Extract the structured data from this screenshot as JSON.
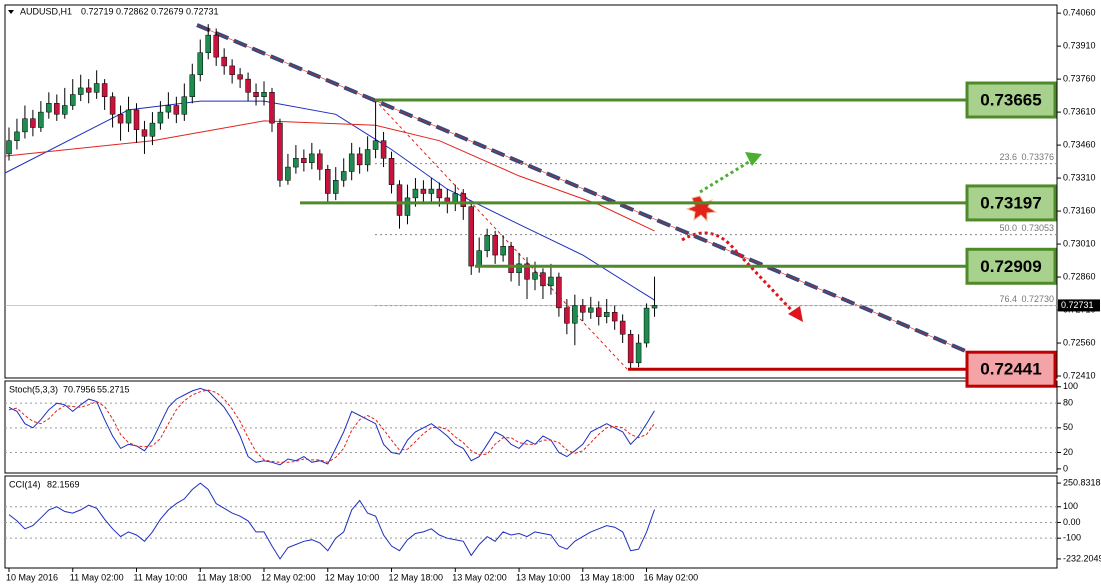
{
  "chart_data": [
    {
      "type": "candlestick",
      "symbol": "AUDUSD,H1",
      "xlim": [
        -0.5,
        131.5
      ],
      "xticks": [
        {
          "value": 0,
          "label": "10 May 2016"
        },
        {
          "value": 8,
          "label": "11 May 02:00"
        },
        {
          "value": 16,
          "label": "11 May 10:00"
        },
        {
          "value": 24,
          "label": "11 May 18:00"
        },
        {
          "value": 32,
          "label": "12 May 02:00"
        },
        {
          "value": 40,
          "label": "12 May 10:00"
        },
        {
          "value": 48,
          "label": "12 May 18:00"
        },
        {
          "value": 56,
          "label": "13 May 02:00"
        },
        {
          "value": 64,
          "label": "13 May 10:00"
        },
        {
          "value": 72,
          "label": "13 May 18:00"
        },
        {
          "value": 80,
          "label": "16 May 02:00"
        }
      ],
      "ylim": [
        0.72401,
        0.74097
      ],
      "yticks": [
        {
          "value": 0.7406,
          "label": "0.74060"
        },
        {
          "value": 0.7391,
          "label": "0.73910"
        },
        {
          "value": 0.7376,
          "label": "0.73760"
        },
        {
          "value": 0.7361,
          "label": "0.73610"
        },
        {
          "value": 0.7346,
          "label": "0.73460"
        },
        {
          "value": 0.7331,
          "label": "0.73310"
        },
        {
          "value": 0.7316,
          "label": "0.73160"
        },
        {
          "value": 0.7301,
          "label": "0.73010"
        },
        {
          "value": 0.7286,
          "label": "0.72860"
        },
        {
          "value": 0.7271,
          "label": "0.72710"
        },
        {
          "value": 0.7256,
          "label": "0.72560"
        },
        {
          "value": 0.7241,
          "label": "0.72410"
        }
      ],
      "up_color": "#1e8c4e",
      "down_color": "#c8143c",
      "open": [
        0.7342,
        0.7348,
        0.7352,
        0.7358,
        0.7354,
        0.7361,
        0.7365,
        0.736,
        0.7364,
        0.7369,
        0.7372,
        0.737,
        0.7374,
        0.7368,
        0.736,
        0.7356,
        0.7362,
        0.7353,
        0.735,
        0.7356,
        0.7361,
        0.7364,
        0.736,
        0.7368,
        0.7378,
        0.7388,
        0.7396,
        0.7386,
        0.7382,
        0.7378,
        0.7376,
        0.737,
        0.7368,
        0.737,
        0.7356,
        0.733,
        0.7336,
        0.734,
        0.7338,
        0.7342,
        0.7335,
        0.7324,
        0.733,
        0.7334,
        0.7342,
        0.7337,
        0.7344,
        0.7348,
        0.734,
        0.7328,
        0.7314,
        0.7322,
        0.7326,
        0.7324,
        0.7326,
        0.7322,
        0.732,
        0.7324,
        0.7318,
        0.7291,
        0.7298,
        0.7305,
        0.7296,
        0.73,
        0.7288,
        0.7292,
        0.7285,
        0.7288,
        0.7282,
        0.7286,
        0.7272,
        0.7265,
        0.7273,
        0.727,
        0.7272,
        0.7268,
        0.727,
        0.7266,
        0.726,
        0.7247,
        0.7256,
        0.72719
      ],
      "high": [
        0.7354,
        0.7358,
        0.7364,
        0.7362,
        0.7366,
        0.737,
        0.7369,
        0.7372,
        0.7376,
        0.7378,
        0.7376,
        0.738,
        0.7376,
        0.737,
        0.7364,
        0.7368,
        0.7365,
        0.7357,
        0.7361,
        0.7366,
        0.737,
        0.7368,
        0.7374,
        0.7383,
        0.7394,
        0.7401,
        0.7399,
        0.739,
        0.7385,
        0.7381,
        0.7379,
        0.7374,
        0.7375,
        0.7372,
        0.7358,
        0.7342,
        0.7346,
        0.7344,
        0.7347,
        0.7344,
        0.7337,
        0.7336,
        0.734,
        0.7347,
        0.7345,
        0.735,
        0.73665,
        0.7352,
        0.7343,
        0.733,
        0.7328,
        0.7331,
        0.733,
        0.7331,
        0.7329,
        0.7326,
        0.7328,
        0.7326,
        0.732,
        0.7304,
        0.7308,
        0.7307,
        0.7305,
        0.7302,
        0.7297,
        0.7295,
        0.7293,
        0.729,
        0.7292,
        0.7288,
        0.7276,
        0.7278,
        0.7276,
        0.7277,
        0.7275,
        0.7276,
        0.7273,
        0.7269,
        0.7262,
        0.726,
        0.7274,
        0.72862
      ],
      "low": [
        0.7339,
        0.7344,
        0.7349,
        0.735,
        0.7352,
        0.7358,
        0.7357,
        0.7358,
        0.7362,
        0.7366,
        0.7365,
        0.7367,
        0.7362,
        0.7354,
        0.7348,
        0.7352,
        0.7347,
        0.7342,
        0.7346,
        0.7353,
        0.7358,
        0.7356,
        0.7357,
        0.7365,
        0.7375,
        0.7385,
        0.7382,
        0.7378,
        0.7374,
        0.7372,
        0.7366,
        0.7364,
        0.7364,
        0.7352,
        0.7327,
        0.7328,
        0.7333,
        0.7334,
        0.7335,
        0.733,
        0.732,
        0.7321,
        0.7327,
        0.733,
        0.7333,
        0.7334,
        0.734,
        0.7336,
        0.7324,
        0.7308,
        0.731,
        0.7318,
        0.732,
        0.732,
        0.7318,
        0.7315,
        0.7316,
        0.7312,
        0.7287,
        0.7288,
        0.7295,
        0.7292,
        0.7293,
        0.7284,
        0.7282,
        0.7276,
        0.728,
        0.7276,
        0.7278,
        0.7268,
        0.726,
        0.7255,
        0.7266,
        0.7267,
        0.7264,
        0.7265,
        0.7262,
        0.7256,
        0.72441,
        0.7245,
        0.7254,
        0.72679
      ],
      "close": [
        0.7348,
        0.7352,
        0.7358,
        0.7354,
        0.7361,
        0.7365,
        0.736,
        0.7364,
        0.7369,
        0.7372,
        0.737,
        0.7374,
        0.7368,
        0.736,
        0.7356,
        0.7362,
        0.7353,
        0.735,
        0.7356,
        0.7361,
        0.7364,
        0.736,
        0.7368,
        0.7378,
        0.7388,
        0.7396,
        0.7386,
        0.7382,
        0.7378,
        0.7376,
        0.737,
        0.7368,
        0.737,
        0.7356,
        0.733,
        0.7336,
        0.734,
        0.7338,
        0.7342,
        0.7335,
        0.7324,
        0.733,
        0.7334,
        0.7342,
        0.7337,
        0.7344,
        0.7348,
        0.734,
        0.7328,
        0.7314,
        0.7322,
        0.7326,
        0.7324,
        0.7326,
        0.7322,
        0.732,
        0.7324,
        0.7318,
        0.7291,
        0.7298,
        0.7305,
        0.7296,
        0.73,
        0.7288,
        0.7292,
        0.7285,
        0.7288,
        0.7282,
        0.7286,
        0.7272,
        0.7265,
        0.7273,
        0.727,
        0.7272,
        0.7268,
        0.727,
        0.7266,
        0.726,
        0.7247,
        0.7256,
        0.72719,
        0.72731
      ],
      "overlays": [
        {
          "color": "#1f2fbf",
          "x": [
            -0.5,
            15,
            24,
            32,
            41,
            48,
            55,
            64,
            72,
            79,
            81
          ],
          "values": [
            0.73333,
            0.7362,
            0.7366,
            0.7366,
            0.736,
            0.7344,
            0.7326,
            0.731,
            0.7296,
            0.728,
            0.72755
          ]
        },
        {
          "color": "#e0241c",
          "x": [
            -0.5,
            18,
            32,
            46,
            54,
            64,
            74,
            81
          ],
          "values": [
            0.7341,
            0.7348,
            0.7357,
            0.7355,
            0.7348,
            0.7332,
            0.7319,
            0.7307
          ]
        }
      ],
      "levels": [
        {
          "value": 0.73665,
          "label": "0.73665",
          "color": "#4f8a2a",
          "fill": "#a9d18e"
        },
        {
          "value": 0.73197,
          "label": "0.73197",
          "color": "#4f8a2a",
          "fill": "#a9d18e"
        },
        {
          "value": 0.72909,
          "label": "0.72909",
          "color": "#4f8a2a",
          "fill": "#a9d18e"
        },
        {
          "value": 0.72441,
          "label": "0.72441",
          "color": "#c00000",
          "fill": "#f4a3a6"
        }
      ],
      "fibs": [
        {
          "level": "23.6",
          "value": 0.73376,
          "label": "0.73376"
        },
        {
          "level": "50.0",
          "value": 0.73053,
          "label": "0.73053"
        },
        {
          "level": "76.4",
          "value": 0.7273,
          "label": "0.72730"
        }
      ]
    },
    {
      "type": "line",
      "title": "Stoch(5,3,3)",
      "ylim": [
        -5,
        107
      ],
      "yticks": [
        100,
        80,
        50,
        20,
        0
      ],
      "series": [
        {
          "color": "#1f2fbf",
          "values": [
            75,
            70,
            55,
            50,
            60,
            72,
            80,
            78,
            70,
            78,
            85,
            82,
            60,
            40,
            25,
            30,
            28,
            22,
            35,
            55,
            75,
            85,
            90,
            95,
            98,
            95,
            85,
            75,
            60,
            40,
            15,
            8,
            10,
            8,
            5,
            12,
            10,
            15,
            8,
            10,
            6,
            25,
            45,
            70,
            65,
            60,
            55,
            30,
            20,
            18,
            35,
            45,
            50,
            55,
            48,
            40,
            30,
            25,
            10,
            15,
            30,
            45,
            40,
            30,
            25,
            35,
            30,
            40,
            35,
            20,
            15,
            22,
            30,
            45,
            50,
            55,
            50,
            45,
            30,
            40,
            55,
            70.7956
          ]
        },
        {
          "color": "#e0241c",
          "dashed": true,
          "values": [
            72,
            74,
            65,
            58,
            55,
            61,
            71,
            77,
            76,
            75,
            78,
            82,
            76,
            61,
            42,
            32,
            28,
            27,
            28,
            37,
            55,
            72,
            83,
            90,
            94,
            96,
            93,
            85,
            73,
            58,
            38,
            21,
            11,
            9,
            8,
            8,
            9,
            12,
            11,
            11,
            8,
            14,
            25,
            47,
            60,
            65,
            60,
            48,
            35,
            23,
            24,
            33,
            43,
            50,
            51,
            48,
            39,
            32,
            22,
            17,
            18,
            30,
            38,
            38,
            32,
            30,
            30,
            35,
            35,
            32,
            23,
            19,
            22,
            32,
            42,
            50,
            52,
            50,
            42,
            38,
            42,
            55.2715
          ]
        }
      ]
    },
    {
      "type": "line",
      "title": "CCI(14)",
      "ylim": [
        -290,
        296
      ],
      "yticks": [
        250.8318,
        100,
        {
          "value": 0,
          "label": "0.00"
        },
        -100,
        -232.2049
      ],
      "series": [
        {
          "color": "#1f2fbf",
          "values": [
            50,
            10,
            -40,
            -20,
            30,
            80,
            100,
            70,
            60,
            80,
            110,
            90,
            20,
            -40,
            -90,
            -60,
            -80,
            -120,
            -60,
            20,
            80,
            120,
            150,
            210,
            250.8318,
            210,
            120,
            90,
            60,
            40,
            10,
            -60,
            -60,
            -150,
            -232.2049,
            -160,
            -140,
            -120,
            -110,
            -130,
            -180,
            -100,
            -60,
            80,
            140,
            60,
            40,
            -80,
            -150,
            -180,
            -110,
            -70,
            -60,
            -40,
            -80,
            -100,
            -110,
            -120,
            -210,
            -140,
            -90,
            -120,
            -60,
            -80,
            -70,
            -90,
            -60,
            -70,
            -80,
            -150,
            -170,
            -120,
            -90,
            -60,
            -40,
            -20,
            -30,
            -60,
            -180,
            -170,
            -60,
            82.1569
          ]
        }
      ]
    }
  ]
}
